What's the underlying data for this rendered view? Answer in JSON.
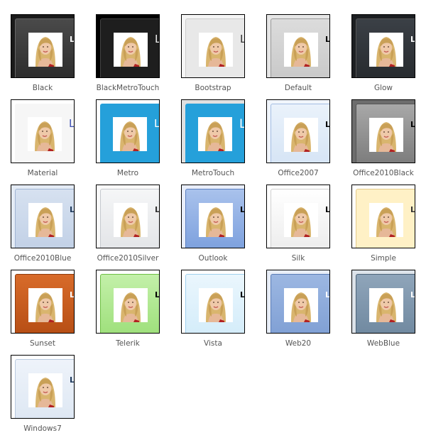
{
  "skins": [
    {
      "name": "Black",
      "text": "Le"
    },
    {
      "name": "BlackMetroTouch",
      "text": "Le"
    },
    {
      "name": "Bootstrap",
      "text": "Le"
    },
    {
      "name": "Default",
      "text": "Le"
    },
    {
      "name": "Glow",
      "text": "Le"
    },
    {
      "name": "Material",
      "text": "Le"
    },
    {
      "name": "Metro",
      "text": "Le"
    },
    {
      "name": "MetroTouch",
      "text": "Le"
    },
    {
      "name": "Office2007",
      "text": "Le"
    },
    {
      "name": "Office2010Black",
      "text": "Le"
    },
    {
      "name": "Office2010Blue",
      "text": "Le"
    },
    {
      "name": "Office2010Silver",
      "text": "Le"
    },
    {
      "name": "Outlook",
      "text": "Le"
    },
    {
      "name": "Silk",
      "text": "Le"
    },
    {
      "name": "Simple",
      "text": "Le"
    },
    {
      "name": "Sunset",
      "text": "Le"
    },
    {
      "name": "Telerik",
      "text": "Le"
    },
    {
      "name": "Vista",
      "text": "Le"
    },
    {
      "name": "Web20",
      "text": "Le"
    },
    {
      "name": "WebBlue",
      "text": "Le"
    },
    {
      "name": "Windows7",
      "text": "Le"
    }
  ]
}
